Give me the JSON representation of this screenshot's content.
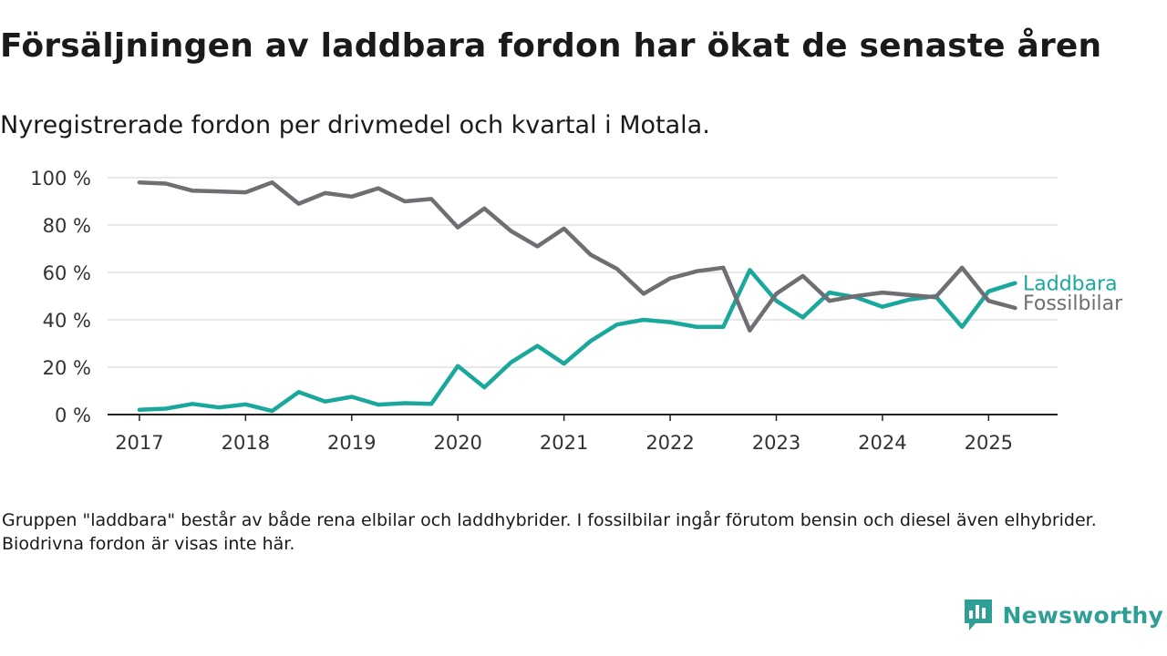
{
  "header": {
    "title": "Försäljningen av laddbara fordon har ökat de senaste åren",
    "subtitle": "Nyregistrerade fordon per drivmedel och kvartal i Motala."
  },
  "footnote": "Gruppen \"laddbara\" består av både rena elbilar och laddhybrider. I fossilbilar ingår förutom bensin och diesel även elhybrider. Biodrivna fordon är visas inte här.",
  "brand": {
    "name": "Newsworthy",
    "icon": "newsworthy-logo-icon",
    "color": "#2f9f96"
  },
  "chart_data": {
    "type": "line",
    "x": [
      2017.0,
      2017.25,
      2017.5,
      2017.75,
      2018.0,
      2018.25,
      2018.5,
      2018.75,
      2019.0,
      2019.25,
      2019.5,
      2019.75,
      2020.0,
      2020.25,
      2020.5,
      2020.75,
      2021.0,
      2021.25,
      2021.5,
      2021.75,
      2022.0,
      2022.25,
      2022.5,
      2022.75,
      2023.0,
      2023.25,
      2023.5,
      2023.75,
      2024.0,
      2024.25,
      2024.5,
      2024.75,
      2025.0,
      2025.25
    ],
    "x_ticks": [
      2017,
      2018,
      2019,
      2020,
      2021,
      2022,
      2023,
      2024,
      2025
    ],
    "x_tick_labels": [
      "2017",
      "2018",
      "2019",
      "2020",
      "2021",
      "2022",
      "2023",
      "2024",
      "2025"
    ],
    "xlim": [
      2016.7,
      2025.65
    ],
    "ylim": [
      0,
      100
    ],
    "y_ticks": [
      0,
      20,
      40,
      60,
      80,
      100
    ],
    "y_tick_labels": [
      "0 %",
      "20 %",
      "40 %",
      "60 %",
      "80 %",
      "100 %"
    ],
    "grid": "horizontal",
    "legend": "inline-right",
    "series": [
      {
        "name": "Fossilbilar",
        "color": "#6e6e73",
        "values": [
          98,
          97.5,
          94.5,
          94.2,
          93.8,
          98,
          89,
          93.5,
          92,
          95.5,
          90,
          91,
          79,
          87,
          77.5,
          71,
          78.5,
          67.5,
          61.5,
          51,
          57.5,
          60.5,
          62,
          35.5,
          51,
          58.5,
          48,
          50,
          51.5,
          50.5,
          49.5,
          62,
          48,
          45
        ]
      },
      {
        "name": "Laddbara",
        "color": "#1aa89c",
        "values": [
          2,
          2.5,
          4.5,
          3,
          4.3,
          1.5,
          9.5,
          5.5,
          7.5,
          4.2,
          4.8,
          4.5,
          20.5,
          11.5,
          22,
          29,
          21.5,
          31,
          38,
          40,
          39,
          37,
          37,
          61,
          48,
          41,
          51.5,
          49.5,
          45.5,
          48.5,
          50,
          37,
          52,
          55.5
        ]
      }
    ]
  }
}
